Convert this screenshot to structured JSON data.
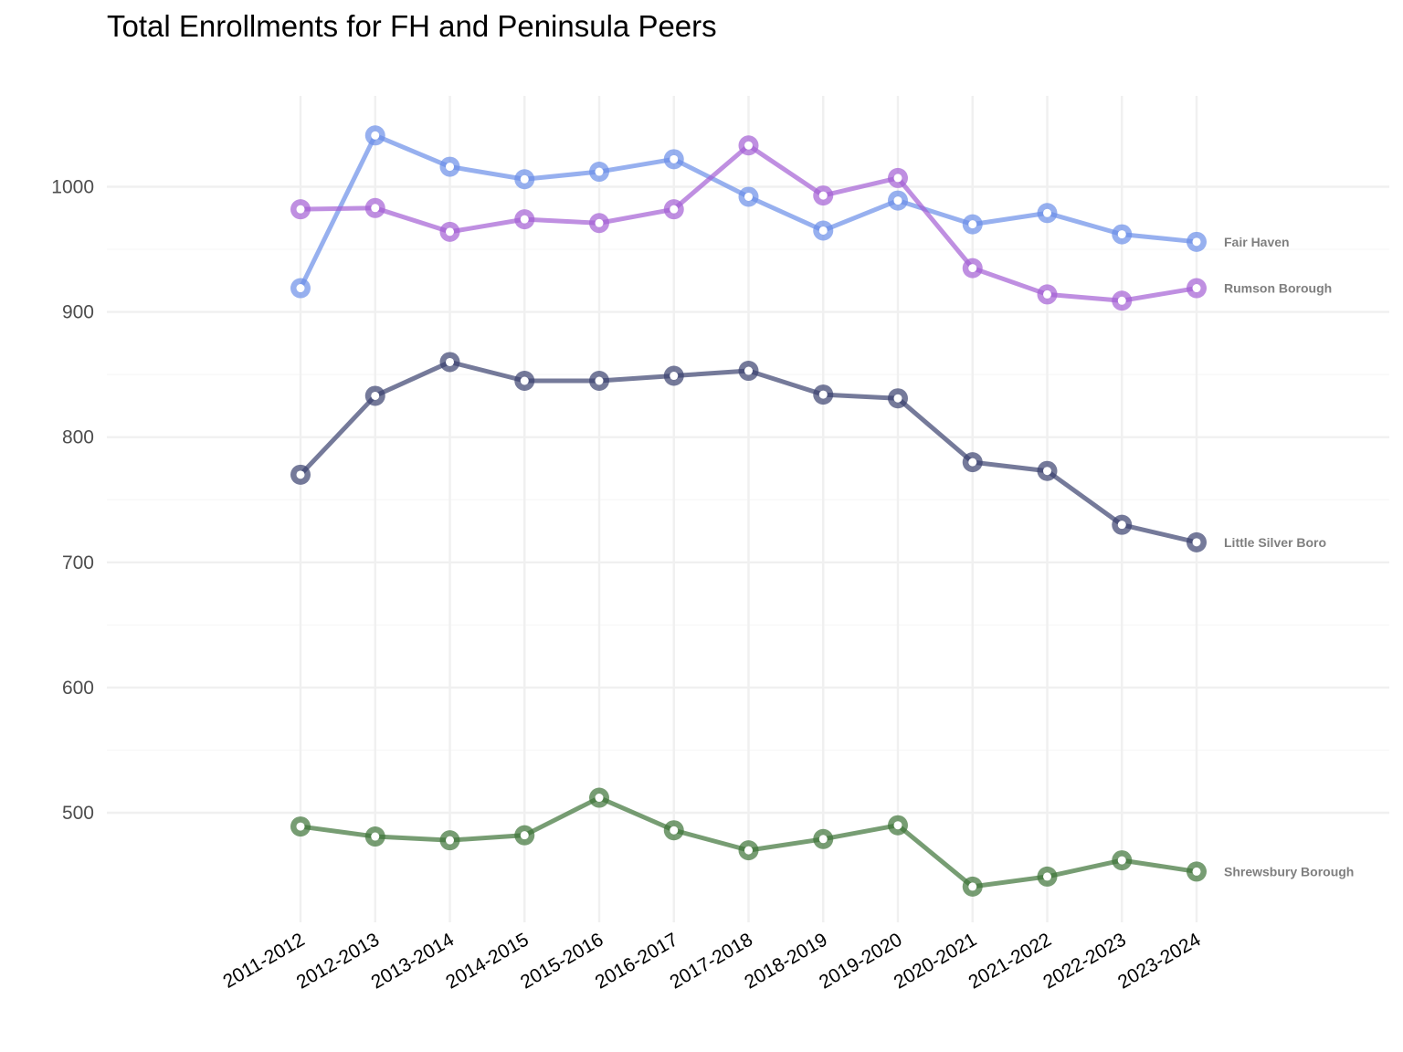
{
  "chart_data": {
    "type": "line",
    "title": "Total Enrollments for FH and Peninsula Peers",
    "xlabel": "",
    "ylabel": "",
    "categories": [
      "2011-2012",
      "2012-2013",
      "2013-2014",
      "2014-2015",
      "2015-2016",
      "2016-2017",
      "2017-2018",
      "2018-2019",
      "2019-2020",
      "2020-2021",
      "2021-2022",
      "2022-2023",
      "2023-2024"
    ],
    "y_ticks": [
      500,
      600,
      700,
      800,
      900,
      1000
    ],
    "ylim": [
      413,
      1070
    ],
    "grid": true,
    "legend": "direct labels at line ends",
    "series": [
      {
        "name": "Fair Haven",
        "color": "#6b8ee8",
        "values": [
          919,
          1041,
          1016,
          1006,
          1012,
          1022,
          992,
          965,
          989,
          970,
          979,
          962,
          956
        ]
      },
      {
        "name": "Rumson Borough",
        "color": "#a45fd4",
        "values": [
          982,
          983,
          964,
          974,
          971,
          982,
          1033,
          993,
          1007,
          935,
          914,
          909,
          919
        ]
      },
      {
        "name": "Little Silver Boro",
        "color": "#3b416f",
        "values": [
          770,
          833,
          860,
          845,
          845,
          849,
          853,
          834,
          831,
          780,
          773,
          730,
          716
        ]
      },
      {
        "name": "Shrewsbury Borough",
        "color": "#3d7437",
        "values": [
          489,
          481,
          478,
          482,
          512,
          486,
          470,
          479,
          490,
          441,
          449,
          462,
          453
        ]
      }
    ]
  }
}
